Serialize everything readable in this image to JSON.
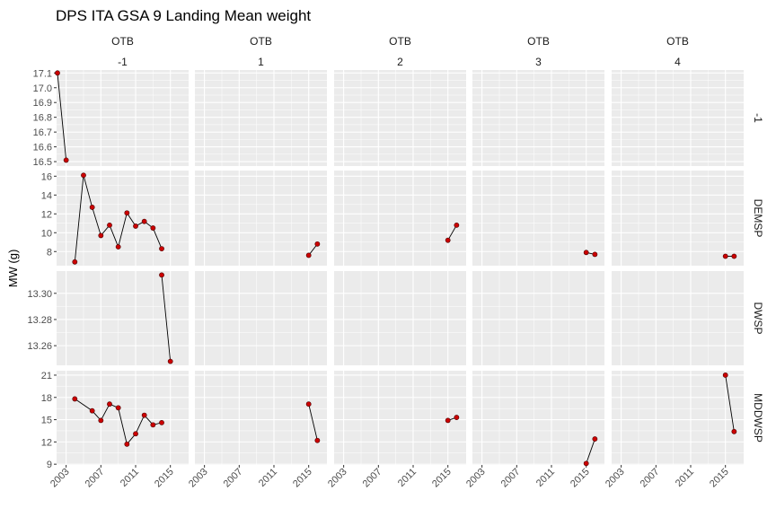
{
  "chart_data": {
    "type": "line",
    "title": "DPS ITA GSA 9 Landing Mean weight",
    "ylabel": "MW (g)",
    "xlabel": "",
    "x_ticks": [
      2003,
      2007,
      2011,
      2015
    ],
    "xlim": [
      2001.9,
      2017.1
    ],
    "col_facet": {
      "top": [
        "OTB",
        "OTB",
        "OTB",
        "OTB",
        "OTB"
      ],
      "bottom": [
        "-1",
        "1",
        "2",
        "3",
        "4"
      ]
    },
    "row_facets": [
      {
        "label": "-1",
        "ylim": [
          16.47,
          17.12
        ],
        "y_ticks": [
          16.5,
          16.6,
          16.7,
          16.8,
          16.9,
          17.0,
          17.1
        ],
        "tick_labels": [
          "16.5",
          "16.6",
          "16.7",
          "16.8",
          "16.9",
          "17.0",
          "17.1"
        ]
      },
      {
        "label": "DEMSP",
        "ylim": [
          6.5,
          16.6
        ],
        "y_ticks": [
          8,
          10,
          12,
          14,
          16
        ],
        "tick_labels": [
          "8",
          "10",
          "12",
          "14",
          "16"
        ]
      },
      {
        "label": "DWSP",
        "ylim": [
          13.245,
          13.317
        ],
        "y_ticks": [
          13.26,
          13.28,
          13.3
        ],
        "tick_labels": [
          "13.26",
          "13.28",
          "13.30"
        ]
      },
      {
        "label": "MDDWSP",
        "ylim": [
          8.9,
          21.6
        ],
        "y_ticks": [
          9,
          12,
          15,
          18,
          21
        ],
        "tick_labels": [
          "9",
          "12",
          "15",
          "18",
          "21"
        ]
      }
    ],
    "series": [
      {
        "row": 0,
        "col": 0,
        "points": [
          [
            2002,
            17.1
          ],
          [
            2003,
            16.51
          ]
        ]
      },
      {
        "row": 1,
        "col": 0,
        "points": [
          [
            2004,
            6.9
          ],
          [
            2005,
            16.1
          ],
          [
            2006,
            12.7
          ],
          [
            2007,
            9.7
          ],
          [
            2008,
            10.8
          ],
          [
            2009,
            8.5
          ],
          [
            2010,
            12.1
          ],
          [
            2011,
            10.7
          ],
          [
            2012,
            11.2
          ],
          [
            2013,
            10.5
          ],
          [
            2014,
            8.3
          ]
        ]
      },
      {
        "row": 1,
        "col": 1,
        "points": [
          [
            2015,
            7.6
          ],
          [
            2016,
            8.8
          ]
        ]
      },
      {
        "row": 1,
        "col": 2,
        "points": [
          [
            2015,
            9.2
          ],
          [
            2016,
            10.8
          ]
        ]
      },
      {
        "row": 1,
        "col": 3,
        "points": [
          [
            2015,
            7.9
          ],
          [
            2016,
            7.7
          ]
        ]
      },
      {
        "row": 1,
        "col": 4,
        "points": [
          [
            2015,
            7.5
          ],
          [
            2016,
            7.5
          ]
        ]
      },
      {
        "row": 2,
        "col": 0,
        "points": [
          [
            2014,
            13.314
          ],
          [
            2015,
            13.248
          ]
        ]
      },
      {
        "row": 3,
        "col": 0,
        "points": [
          [
            2004,
            17.8
          ],
          [
            2006,
            16.2
          ],
          [
            2007,
            14.9
          ],
          [
            2008,
            17.1
          ],
          [
            2009,
            16.6
          ],
          [
            2010,
            11.7
          ],
          [
            2011,
            13.1
          ],
          [
            2012,
            15.6
          ],
          [
            2013,
            14.3
          ],
          [
            2014,
            14.6
          ]
        ]
      },
      {
        "row": 3,
        "col": 1,
        "points": [
          [
            2015,
            17.1
          ],
          [
            2016,
            12.2
          ]
        ]
      },
      {
        "row": 3,
        "col": 2,
        "points": [
          [
            2015,
            14.9
          ],
          [
            2016,
            15.3
          ]
        ]
      },
      {
        "row": 3,
        "col": 3,
        "points": [
          [
            2015,
            9.1
          ],
          [
            2016,
            12.4
          ]
        ]
      },
      {
        "row": 3,
        "col": 4,
        "points": [
          [
            2015,
            21.0
          ],
          [
            2016,
            13.4
          ]
        ]
      }
    ],
    "grid": true,
    "point_color": "#cc0000",
    "line_color": "#000000",
    "panel_bg": "#ebebeb"
  }
}
